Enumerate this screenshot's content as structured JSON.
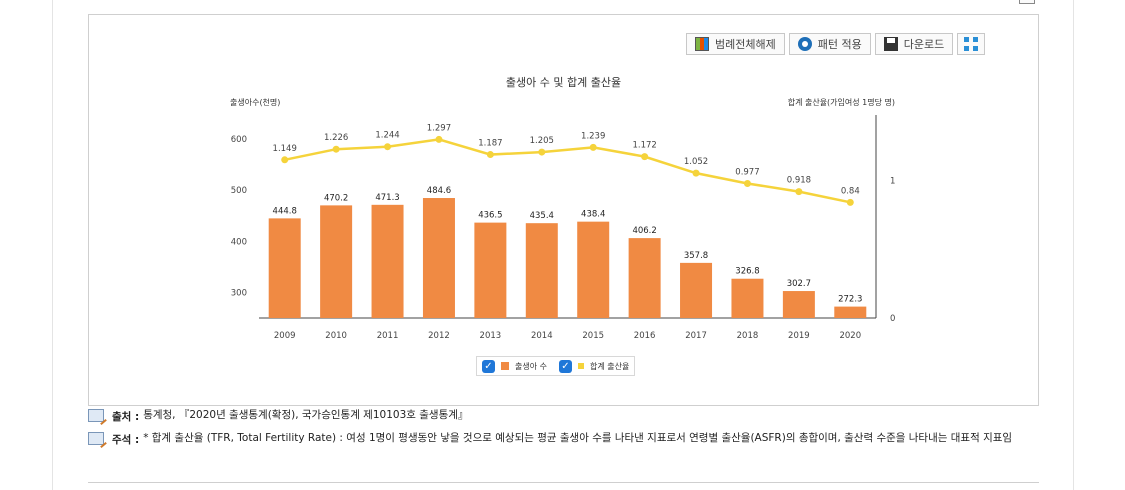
{
  "toolbar": {
    "legend_toggle_label": "범례전체해제",
    "pattern_label": "패턴 적용",
    "download_label": "다운로드"
  },
  "chart_data": {
    "type": "bar",
    "title": "출생아 수 및 합계 출산율",
    "y_left_label": "출생아수(천명)",
    "y_right_label": "합계 출산율(가임여성 1명당 명)",
    "categories": [
      "2009",
      "2010",
      "2011",
      "2012",
      "2013",
      "2014",
      "2015",
      "2016",
      "2017",
      "2018",
      "2019",
      "2020"
    ],
    "y_left_range": [
      250,
      600
    ],
    "y_left_ticks": [
      "300",
      "400",
      "500",
      "600"
    ],
    "y_right_range": [
      0,
      1.3
    ],
    "y_right_ticks": [
      "0",
      "1"
    ],
    "grid": false,
    "legend_position": "bottom",
    "series": [
      {
        "name": "출생아 수",
        "type": "bar",
        "axis": "left",
        "color": "#f08a43",
        "values": [
          444.8,
          470.2,
          471.3,
          484.6,
          436.5,
          435.4,
          438.4,
          406.2,
          357.8,
          326.8,
          302.7,
          272.3
        ],
        "labels": [
          "444.8",
          "470.2",
          "471.3",
          "484.6",
          "436.5",
          "435.4",
          "438.4",
          "406.2",
          "357.8",
          "326.8",
          "302.7",
          "272.3"
        ]
      },
      {
        "name": "합계 출산율",
        "type": "line",
        "axis": "right",
        "color": "#f5d33b",
        "values": [
          1.149,
          1.226,
          1.244,
          1.297,
          1.187,
          1.205,
          1.239,
          1.172,
          1.052,
          0.977,
          0.918,
          0.84
        ],
        "labels": [
          "1.149",
          "1.226",
          "1.244",
          "1.297",
          "1.187",
          "1.205",
          "1.239",
          "1.172",
          "1.052",
          "0.977",
          "0.918",
          "0.84"
        ]
      }
    ]
  },
  "legend": {
    "item1": "출생아 수",
    "item2": "합계 출산율"
  },
  "notes": {
    "source_label": "출처 :",
    "source_text": "통계청, 『2020년 출생통계(확정), 국가승인통계 제10103호 출생통계』",
    "footnote_label": "주석 :",
    "footnote_text": "* 합계 출산율 (TFR, Total Fertility Rate) : 여성 1명이 평생동안 낳을 것으로 예상되는 평균 출생아 수를 나타낸 지표로서 연령별 출산율(ASFR)의 총합이며, 출산력 수준을 나타내는 대표적 지표임"
  }
}
